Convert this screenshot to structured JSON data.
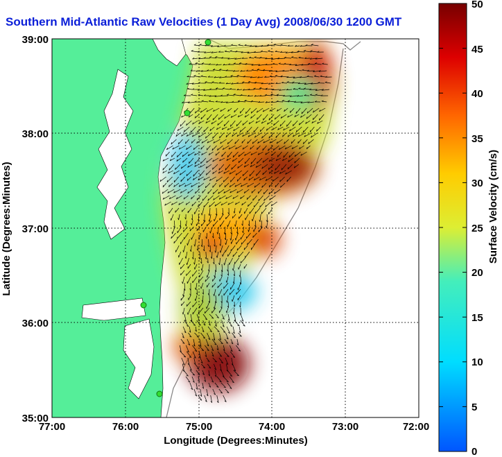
{
  "title": "Southern Mid-Atlantic Raw Velocities (1 Day Avg) 2008/06/30 1200 GMT",
  "map": {
    "xlabel": "Longitude (Degrees:Minutes)",
    "ylabel": "Latitude (Degrees:Minutes)",
    "x_ticks": [
      "77:00",
      "76:00",
      "75:00",
      "74:00",
      "73:00",
      "72:00"
    ],
    "y_ticks": [
      "39:00",
      "38:00",
      "37:00",
      "36:00",
      "35:00"
    ],
    "lon_range": [
      -77,
      -72
    ],
    "lat_range": [
      35,
      39
    ],
    "grid": true,
    "land_color": "#55ee99",
    "water_color": "#ffffff",
    "station_color": "#33dd33"
  },
  "colorbar": {
    "label": "Surface Velocity (cm/s)",
    "min": 0,
    "max": 50,
    "ticks": [
      "50",
      "45",
      "40",
      "35",
      "30",
      "25",
      "20",
      "15",
      "10",
      "5",
      "0"
    ],
    "colormap": "jet"
  },
  "chart_data": {
    "type": "heatmap",
    "title": "Southern Mid-Atlantic Raw Velocities (1 Day Avg) 2008/06/30 1200 GMT",
    "xlabel": "Longitude (Degrees:Minutes)",
    "ylabel": "Latitude (Degrees:Minutes)",
    "units": "cm/s",
    "value_range": [
      0,
      50
    ],
    "regions": [
      {
        "lon": -74.6,
        "lat": 38.6,
        "speed": 25
      },
      {
        "lon": -74.0,
        "lat": 38.7,
        "speed": 30
      },
      {
        "lon": -73.5,
        "lat": 38.6,
        "speed": 40
      },
      {
        "lon": -74.2,
        "lat": 37.6,
        "speed": 45
      },
      {
        "lon": -74.9,
        "lat": 38.0,
        "speed": 18
      },
      {
        "lon": -75.4,
        "lat": 37.6,
        "speed": 17
      },
      {
        "lon": -74.9,
        "lat": 37.3,
        "speed": 32
      },
      {
        "lon": -75.0,
        "lat": 36.8,
        "speed": 40
      },
      {
        "lon": -74.4,
        "lat": 36.9,
        "speed": 38
      },
      {
        "lon": -74.6,
        "lat": 36.2,
        "speed": 15
      },
      {
        "lon": -75.0,
        "lat": 36.4,
        "speed": 22
      },
      {
        "lon": -74.9,
        "lat": 35.4,
        "speed": 45
      }
    ],
    "stations": [
      {
        "lon": -74.9,
        "lat": 38.98
      },
      {
        "lon": -75.1,
        "lat": 38.2
      },
      {
        "lon": -75.55,
        "lat": 36.2
      },
      {
        "lon": -75.5,
        "lat": 35.25
      }
    ]
  }
}
